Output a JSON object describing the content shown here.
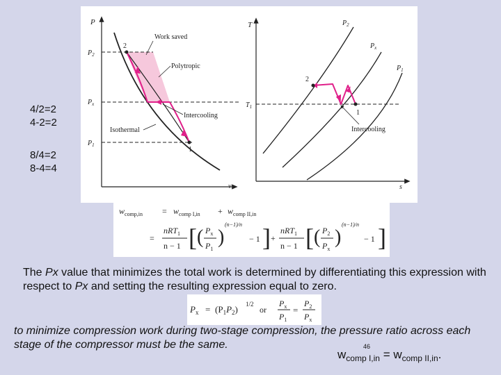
{
  "side_notes": [
    "4/2=2",
    "4-2=2",
    "8/4=2",
    "8-4=4"
  ],
  "pv_diagram": {
    "axis_y": "P",
    "axis_x": "v",
    "p2_label": "P",
    "p2_sub": "2",
    "px_label": "P",
    "px_sub": "x",
    "p1_label": "P",
    "p1_sub": "1",
    "state_1": "1",
    "state_2": "2",
    "work_saved": "Work saved",
    "polytropic": "Polytropic",
    "intercooling": "Intercooling",
    "isothermal": "Isothermal",
    "shade_color": "#f6c8dc",
    "process_color": "#e0208a"
  },
  "ts_diagram": {
    "axis_y": "T",
    "axis_x": "s",
    "t1_label": "T",
    "t1_sub": "1",
    "p2_label": "P",
    "p2_sub": "2",
    "px_label": "P",
    "px_sub": "x",
    "p1_label": "P",
    "p1_sub": "1",
    "state_1": "1",
    "state_2": "2",
    "intercooling": "Intercooling"
  },
  "work_equation": {
    "line1_left": "w",
    "line1_left_sub": "comp,in",
    "line1_term1": "w",
    "line1_term1_sub": "comp I,in",
    "line1_term2": "w",
    "line1_term2_sub": "comp II,in",
    "equals": "=",
    "plus": "+",
    "frac_num": "nRT",
    "frac_num_sub": "1",
    "frac_den": "n − 1",
    "ratio1_num": "P",
    "ratio1_num_sub": "x",
    "ratio1_den": "P",
    "ratio1_den_sub": "1",
    "ratio2_num": "P",
    "ratio2_num_sub": "2",
    "ratio2_den": "P",
    "ratio2_den_sub": "x",
    "exponent": "(n−1)/n",
    "minus_one": "− 1"
  },
  "explanation": {
    "part1": "The ",
    "px1": "Px",
    "part2": " value that minimizes the total work is determined by differentiating this expression with respect to ",
    "px2": "Px",
    "part3": " and setting the resulting expression equal to zero."
  },
  "optimum": {
    "lhs": "P",
    "lhs_sub": "x",
    "eq": "=",
    "paren": "(P",
    "paren_sub1": "1",
    "paren_mid": "P",
    "paren_sub2": "2",
    "paren_close": ")",
    "exp": "1/2",
    "or": "or",
    "f1_num": "P",
    "f1_num_sub": "x",
    "f1_den": "P",
    "f1_den_sub": "1",
    "f2_num": "P",
    "f2_num_sub": "2",
    "f2_den": "P",
    "f2_den_sub": "x"
  },
  "conclusion": "to minimize compression work during two-stage compression, the pressure ratio across each stage of the compressor must be the same.",
  "page_number": "46",
  "work_equality": {
    "left": "w",
    "left_sub": "comp I,in",
    "equals": " = ",
    "right": "w",
    "right_sub": "comp II,in",
    "end": "."
  }
}
